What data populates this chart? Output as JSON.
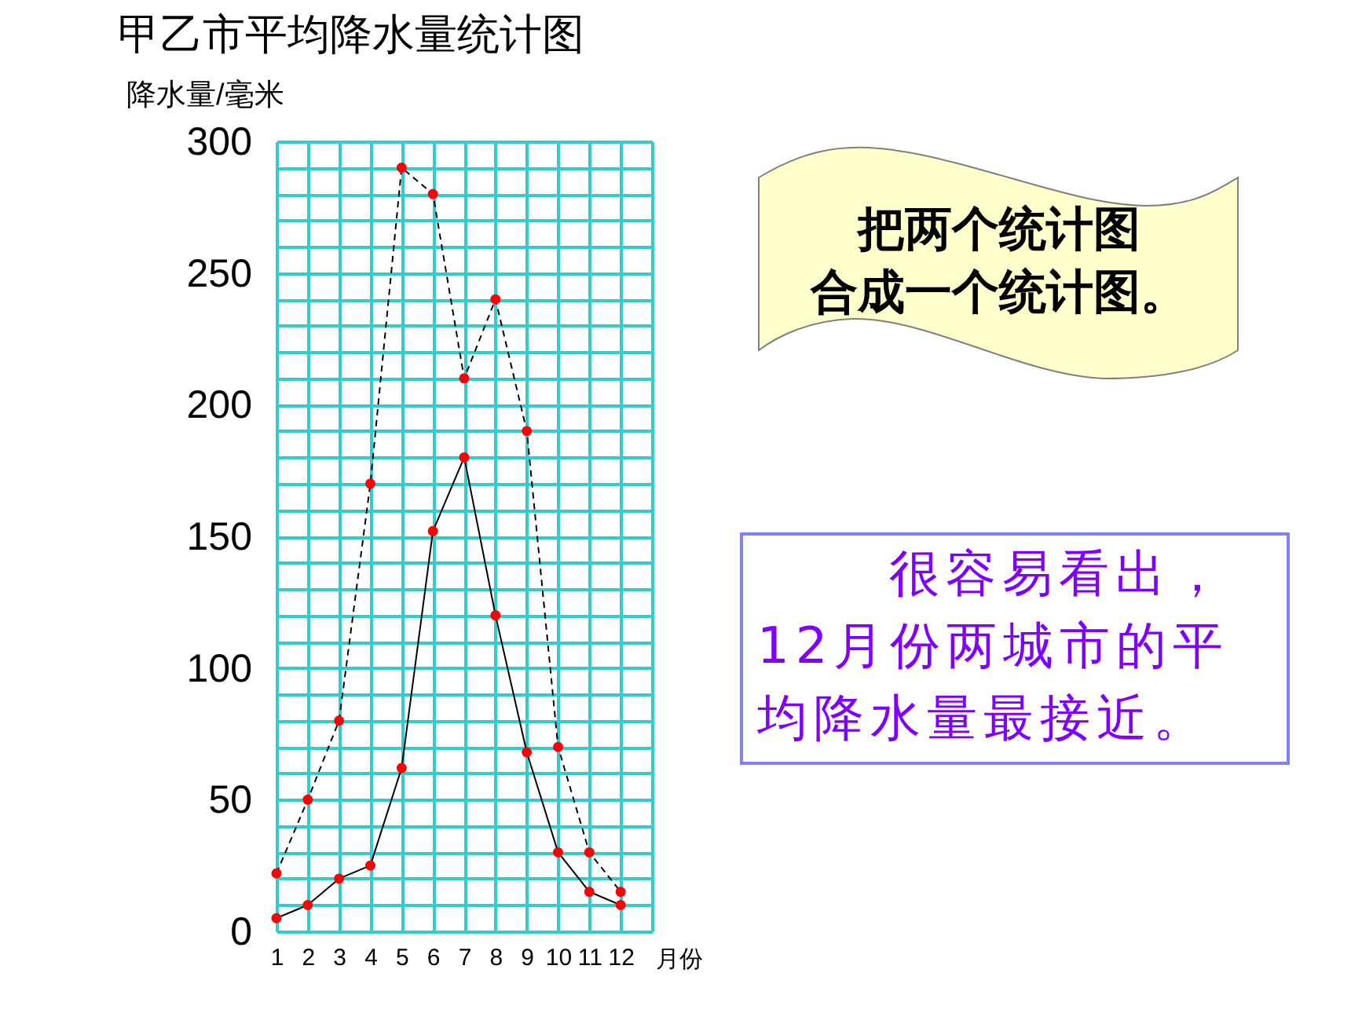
{
  "chart_data": {
    "type": "line",
    "title": "甲乙市平均降水量统计图",
    "xlabel": "月份",
    "ylabel": "降水量/毫米",
    "x": [
      1,
      2,
      3,
      4,
      5,
      6,
      7,
      8,
      9,
      10,
      11,
      12
    ],
    "series": [
      {
        "color": "#000000",
        "line_style": "dashed",
        "colors": [
          "#ff0000",
          "#ff0000",
          "#ff0000",
          "#ff0000",
          "#ff0000",
          "#ff0000",
          "#ff0000",
          "#ff0000",
          "#ff0000",
          "#ff0000",
          "#ff0000",
          "#ff0000"
        ],
        "values": [
          22,
          50,
          80,
          170,
          290,
          280,
          210,
          240,
          190,
          70,
          30,
          15
        ]
      },
      {
        "color": "#000000",
        "line_style": "solid",
        "colors": [
          "#ff0000",
          "#ff0000",
          "#ff0000",
          "#ff0000",
          "#ff0000",
          "#ff0000",
          "#ff0000",
          "#ff0000",
          "#ff0000",
          "#ff0000",
          "#ff0000",
          "#ff0000"
        ],
        "values": [
          5,
          10,
          20,
          25,
          62,
          152,
          180,
          120,
          68,
          30,
          15,
          10
        ]
      }
    ],
    "xlim": [
      1,
      13
    ],
    "xticks": [
      1,
      2,
      3,
      4,
      5,
      6,
      7,
      8,
      9,
      10,
      11,
      12,
      {
        "value": 13,
        "label": null
      }
    ],
    "ylim": [
      0,
      300
    ],
    "yticks": [
      0,
      {
        "value": 10,
        "label": null
      },
      {
        "value": 20,
        "label": null
      },
      {
        "value": 30,
        "label": null
      },
      {
        "value": 40,
        "label": null
      },
      50,
      {
        "value": 60,
        "label": null
      },
      {
        "value": 70,
        "label": null
      },
      {
        "value": 80,
        "label": null
      },
      {
        "value": 90,
        "label": null
      },
      100,
      {
        "value": 110,
        "label": null
      },
      {
        "value": 120,
        "label": null
      },
      {
        "value": 130,
        "label": null
      },
      {
        "value": 140,
        "label": null
      },
      150,
      {
        "value": 160,
        "label": null
      },
      {
        "value": 170,
        "label": null
      },
      {
        "value": 180,
        "label": null
      },
      {
        "value": 190,
        "label": null
      },
      200,
      {
        "value": 210,
        "label": null
      },
      {
        "value": 220,
        "label": null
      },
      {
        "value": 230,
        "label": null
      },
      {
        "value": 240,
        "label": null
      },
      250,
      {
        "value": 260,
        "label": null
      },
      {
        "value": 270,
        "label": null
      },
      {
        "value": 280,
        "label": null
      },
      {
        "value": 290,
        "label": null
      },
      300
    ],
    "grid": true,
    "marker": "circle",
    "annotations": [
      "把两个统计图合成一个统计图。",
      "很容易看出，12月份两城市的平均降水量最接近。"
    ]
  }
}
